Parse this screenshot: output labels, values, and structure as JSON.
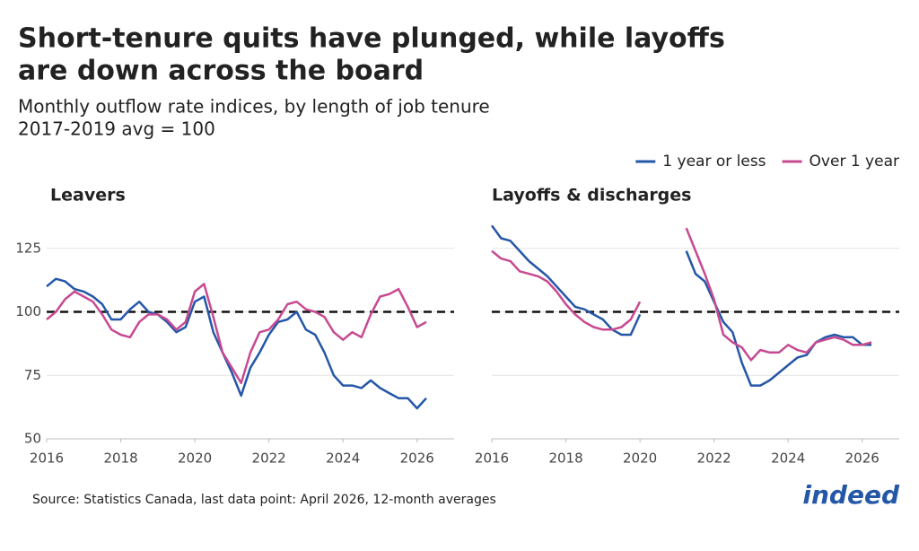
{
  "title": [
    "Short-tenure quits have plunged, while layoffs",
    "are down across the board"
  ],
  "subtitle": [
    "Monthly outflow rate indices, by length of job tenure",
    "2017-2019 avg = 100"
  ],
  "source": "Source: Statistics Canada, last data point: April 2026, 12-month averages",
  "logo": "indeed",
  "chart_data": [
    {
      "type": "line",
      "title": "Leavers",
      "x": [
        2016,
        2016.25,
        2016.5,
        2016.75,
        2017,
        2017.25,
        2017.5,
        2017.75,
        2018,
        2018.25,
        2018.5,
        2018.75,
        2019,
        2019.25,
        2019.5,
        2019.75,
        2020,
        2020.25,
        2020.5,
        2020.75,
        2021,
        2021.25,
        2021.5,
        2021.75,
        2022,
        2022.25,
        2022.5,
        2022.75,
        2023,
        2023.25,
        2023.5,
        2023.75,
        2024,
        2024.25,
        2024.5,
        2024.75,
        2025,
        2025.25,
        2025.5,
        2025.75,
        2026,
        2026.25
      ],
      "series": [
        {
          "name": "1 year or less",
          "color": "#2557a7",
          "values": [
            110,
            113,
            112,
            109,
            108,
            106,
            103,
            97,
            97,
            101,
            104,
            100,
            99,
            96,
            92,
            94,
            104,
            106,
            92,
            84,
            76,
            67,
            78,
            84,
            91,
            96,
            97,
            100,
            93,
            91,
            84,
            75,
            71,
            71,
            70,
            73,
            70,
            68,
            66,
            66,
            62,
            66
          ]
        },
        {
          "name": "Over 1 year",
          "color": "#c74a91",
          "values": [
            97,
            100,
            105,
            108,
            106,
            104,
            99,
            93,
            91,
            90,
            96,
            99,
            99,
            97,
            93,
            96,
            108,
            111,
            98,
            84,
            78,
            72,
            84,
            92,
            93,
            97,
            103,
            104,
            101,
            100,
            98,
            92,
            89,
            92,
            90,
            99,
            106,
            107,
            109,
            102,
            94,
            96
          ]
        }
      ],
      "xlim": [
        2016,
        2027
      ],
      "ylim": [
        50,
        138
      ],
      "xticks": [
        2016,
        2018,
        2020,
        2022,
        2024,
        2026
      ],
      "yticks": [
        50,
        75,
        100,
        125
      ],
      "show_ytick_labels": true,
      "reference": 100,
      "grid": true
    },
    {
      "type": "line",
      "title": "Layoffs & discharges",
      "x": [
        2016,
        2016.25,
        2016.5,
        2016.75,
        2017,
        2017.25,
        2017.5,
        2017.75,
        2018,
        2018.25,
        2018.5,
        2018.75,
        2019,
        2019.25,
        2019.5,
        2019.75,
        2020,
        2020.25,
        2020.5,
        2020.75,
        2021,
        2021.25,
        2021.5,
        2021.75,
        2022,
        2022.25,
        2022.5,
        2022.75,
        2023,
        2023.25,
        2023.5,
        2023.75,
        2024,
        2024.25,
        2024.5,
        2024.75,
        2025,
        2025.25,
        2025.5,
        2025.75,
        2026,
        2026.25
      ],
      "series": [
        {
          "name": "1 year or less",
          "color": "#2557a7",
          "values": [
            134,
            129,
            128,
            124,
            120,
            117,
            114,
            110,
            106,
            102,
            101,
            99,
            97,
            93,
            91,
            91,
            99,
            null,
            null,
            null,
            null,
            124,
            115,
            112,
            104,
            96,
            92,
            80,
            71,
            71,
            73,
            76,
            79,
            82,
            83,
            88,
            90,
            91,
            90,
            90,
            87,
            87
          ]
        },
        {
          "name": "Over 1 year",
          "color": "#c74a91",
          "values": [
            124,
            121,
            120,
            116,
            115,
            114,
            112,
            108,
            103,
            99,
            96,
            94,
            93,
            93,
            94,
            97,
            104,
            null,
            null,
            null,
            null,
            133,
            124,
            115,
            105,
            91,
            88,
            86,
            81,
            85,
            84,
            84,
            87,
            85,
            84,
            88,
            89,
            90,
            89,
            87,
            87,
            88
          ]
        }
      ],
      "xlim": [
        2016,
        2027
      ],
      "ylim": [
        50,
        138
      ],
      "xticks": [
        2016,
        2018,
        2020,
        2022,
        2024,
        2026
      ],
      "yticks": [
        50,
        75,
        100,
        125
      ],
      "show_ytick_labels": false,
      "reference": 100,
      "grid": true
    }
  ]
}
